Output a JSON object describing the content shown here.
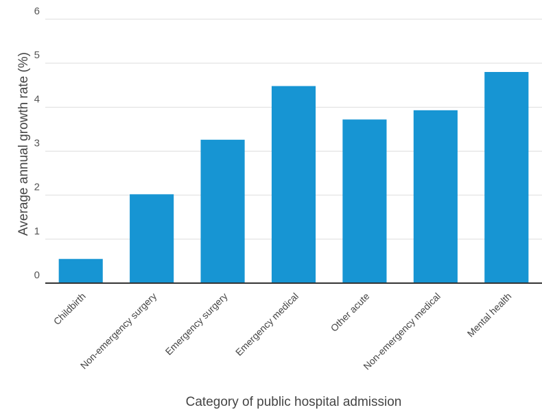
{
  "chart_data": {
    "type": "bar",
    "categories": [
      "Childbirth",
      "Non-emergency surgery",
      "Emergency surgery",
      "Emergency medical",
      "Other acute",
      "Non-emergency medical",
      "Mental health"
    ],
    "values": [
      0.55,
      2.02,
      3.26,
      4.48,
      3.72,
      3.93,
      4.8
    ],
    "xlabel": "Category of public hospital admission",
    "ylabel": "Average annual growth rate (%)",
    "ylim": [
      0,
      6
    ],
    "yticks": [
      0,
      1,
      2,
      3,
      4,
      5,
      6
    ],
    "grid": true,
    "colors": {
      "bar": "#1795d3",
      "grid": "#dddddd",
      "baseline": "#333333"
    }
  }
}
